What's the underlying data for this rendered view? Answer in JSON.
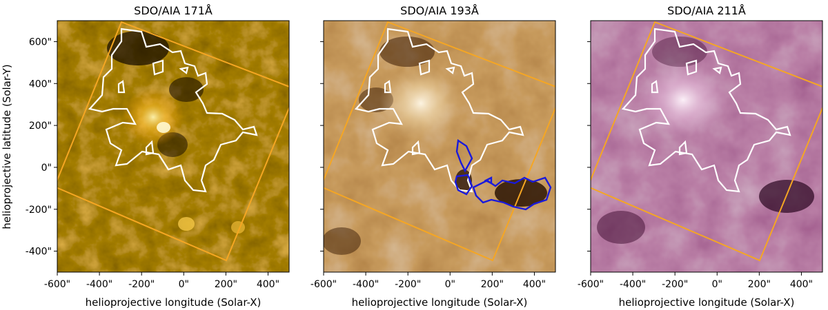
{
  "figure": {
    "ylabel": "helioprojective latitude (Solar-Y)",
    "yticks": [
      "600\"",
      "400\"",
      "200\"",
      "0\"",
      "-200\"",
      "-400\""
    ],
    "ytick_values": [
      600,
      400,
      200,
      0,
      -200,
      -400
    ],
    "xticks": [
      "-600\"",
      "-400\"",
      "-200\"",
      "0\"",
      "200\"",
      "400\""
    ],
    "xtick_values": [
      -600,
      -400,
      -200,
      0,
      200,
      400
    ],
    "x_range": [
      -600,
      500
    ],
    "y_range": [
      -500,
      700
    ],
    "colors": {
      "frame": "#f5a623",
      "contour_white": "#ffffff",
      "contour_blue": "#1a1adb"
    }
  },
  "panels": [
    {
      "title": "SDO/AIA 171Å",
      "xlabel": "helioprojective longitude (Solar-X)",
      "colormap": "sdoaia171",
      "palette": {
        "dark": "#2a1a00",
        "mid": "#b07400",
        "light": "#ffd050"
      }
    },
    {
      "title": "SDO/AIA 193Å",
      "xlabel": "helioprojective longitude (Solar-X)",
      "colormap": "sdoaia193",
      "palette": {
        "dark": "#3a1c05",
        "mid": "#a26a30",
        "light": "#f6e3be"
      }
    },
    {
      "title": "SDO/AIA 211Å",
      "xlabel": "helioprojective longitude (Solar-X)",
      "colormap": "sdoaia211",
      "palette": {
        "dark": "#3c0a2e",
        "mid": "#8a4f7a",
        "light": "#f4dcef"
      }
    }
  ]
}
